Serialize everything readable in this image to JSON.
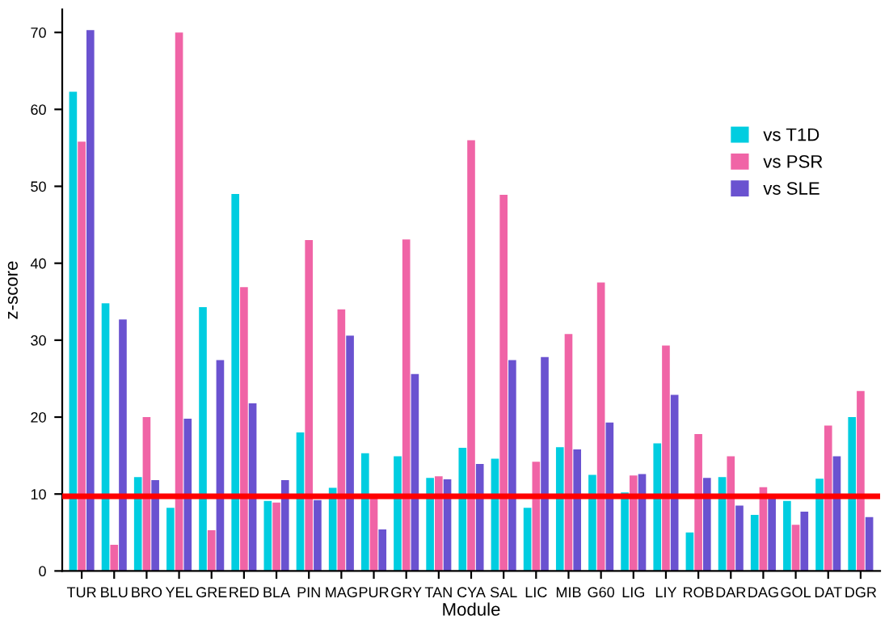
{
  "chart_data": {
    "type": "bar",
    "xlabel": "Module",
    "ylabel": "z-score",
    "categories": [
      "TUR",
      "BLU",
      "BRO",
      "YEL",
      "GRE",
      "RED",
      "BLA",
      "PIN",
      "MAG",
      "PUR",
      "GRY",
      "TAN",
      "CYA",
      "SAL",
      "LIC",
      "MIB",
      "G60",
      "LIG",
      "LIY",
      "ROB",
      "DAR",
      "DAG",
      "GOL",
      "DAT",
      "DGR"
    ],
    "series": [
      {
        "name": "vs T1D",
        "color": "#00cde0",
        "values": [
          62.3,
          34.8,
          12.2,
          8.2,
          34.3,
          49,
          9.1,
          18,
          10.8,
          15.3,
          14.9,
          12.1,
          16,
          14.6,
          8.2,
          16.1,
          12.5,
          10.2,
          16.6,
          5,
          12.2,
          7.3,
          9.1,
          12,
          20
        ]
      },
      {
        "name": "vs PSR",
        "color": "#f064a6",
        "values": [
          55.8,
          3.4,
          20,
          70,
          5.3,
          36.9,
          8.9,
          43,
          34,
          9.8,
          43.1,
          12.3,
          56,
          48.9,
          14.2,
          30.8,
          37.5,
          12.4,
          29.3,
          17.8,
          14.9,
          10.9,
          6,
          18.9,
          23.4
        ]
      },
      {
        "name": "vs SLE",
        "color": "#6a52d0",
        "values": [
          70.3,
          32.7,
          11.8,
          19.8,
          27.4,
          21.8,
          11.8,
          9.2,
          30.6,
          5.4,
          25.6,
          11.9,
          13.9,
          27.4,
          27.8,
          15.8,
          19.3,
          12.6,
          22.9,
          12.1,
          8.5,
          9.5,
          7.7,
          14.9,
          7
        ]
      }
    ],
    "ylim": [
      0,
      73
    ],
    "yticks": [
      0,
      10,
      20,
      30,
      40,
      50,
      60,
      70
    ],
    "ref_lines": [
      {
        "axis": "y",
        "value": 9.7,
        "color": "#ff0000",
        "line_style": "solid"
      }
    ],
    "grid": false,
    "legend": "top right"
  }
}
